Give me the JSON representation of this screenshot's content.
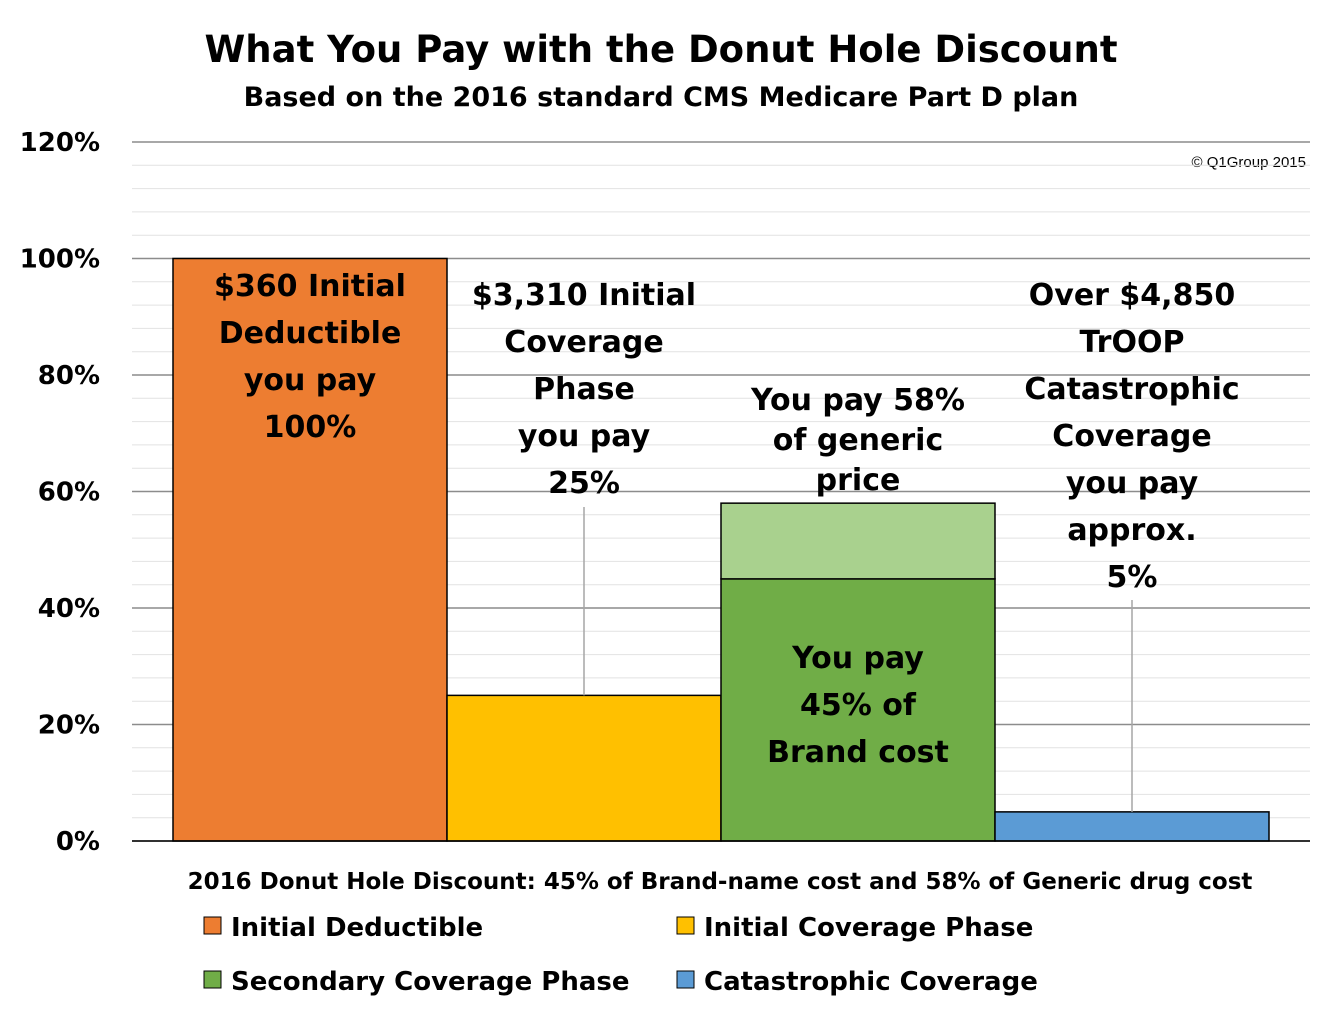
{
  "chart_data": {
    "type": "bar",
    "title": "What You Pay with the Donut Hole Discount",
    "subtitle": "Based on the 2016 standard CMS Medicare Part D plan",
    "copyright": "© Q1Group 2015",
    "xlabel": "2016 Donut Hole Discount: 45% of Brand-name cost and 58% of Generic drug cost",
    "ylabel": "",
    "ylim": [
      0,
      120
    ],
    "y_ticks": [
      "0%",
      "20%",
      "40%",
      "60%",
      "80%",
      "100%",
      "120%"
    ],
    "y_tick_values": [
      0,
      20,
      40,
      60,
      80,
      100,
      120
    ],
    "minor_grid_step": 4,
    "grid": true,
    "legend_position": "bottom",
    "series": [
      {
        "name": "Initial Deductible",
        "color": "#ED7D31",
        "value": 100,
        "label_lines": [
          "$360 Initial",
          "Deductible",
          "you pay",
          "100%"
        ]
      },
      {
        "name": "Initial Coverage Phase",
        "color": "#FFC000",
        "value": 25,
        "label_lines": [
          "$3,310 Initial",
          "Coverage",
          "Phase",
          "you pay",
          "25%"
        ]
      },
      {
        "name": "Secondary Coverage Phase",
        "color": "#70AD47",
        "value": 45,
        "generic_value": 58,
        "generic_color": "#A9D18E",
        "label_lines": [
          "You pay",
          "45% of",
          "Brand cost"
        ],
        "generic_label_lines": [
          "You pay 58%",
          "of generic",
          "price"
        ]
      },
      {
        "name": "Catastrophic Coverage",
        "color": "#5B9BD5",
        "value": 5,
        "label_lines": [
          "Over $4,850",
          "TrOOP",
          "Catastrophic",
          "Coverage",
          "you pay",
          "approx.",
          "5%"
        ]
      }
    ]
  }
}
